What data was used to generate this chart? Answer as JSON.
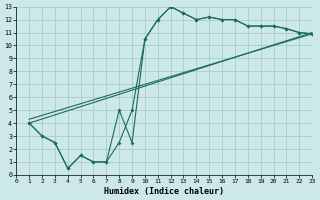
{
  "background_color": "#cce8e8",
  "grid_color": "#aacccc",
  "line_color": "#1a6b60",
  "xlabel": "Humidex (Indice chaleur)",
  "xlim": [
    0,
    23
  ],
  "ylim": [
    0,
    13
  ],
  "xticks": [
    0,
    1,
    2,
    3,
    4,
    5,
    6,
    7,
    8,
    9,
    10,
    11,
    12,
    13,
    14,
    15,
    16,
    17,
    18,
    19,
    20,
    21,
    22,
    23
  ],
  "yticks": [
    0,
    1,
    2,
    3,
    4,
    5,
    6,
    7,
    8,
    9,
    10,
    11,
    12,
    13
  ],
  "series1_x": [
    1,
    2,
    3,
    4,
    5,
    6,
    7,
    8,
    9,
    10,
    11,
    12,
    13,
    14,
    15,
    16,
    17,
    18,
    19,
    20,
    21,
    22,
    23
  ],
  "series1_y": [
    4.0,
    3.0,
    2.5,
    0.5,
    1.5,
    1.0,
    1.0,
    2.5,
    5.0,
    10.5,
    12.0,
    13.0,
    12.5,
    12.0,
    12.2,
    12.0,
    12.0,
    11.5,
    11.5,
    11.5,
    11.3,
    11.0,
    10.9
  ],
  "series2_x": [
    1,
    2,
    3,
    4,
    5,
    6,
    7,
    8,
    9,
    10,
    11,
    12,
    13,
    14,
    15,
    16,
    17,
    18,
    19,
    20,
    21,
    22,
    23
  ],
  "series2_y": [
    4.0,
    3.0,
    2.5,
    0.5,
    1.5,
    1.0,
    1.0,
    5.0,
    2.5,
    10.5,
    12.0,
    13.0,
    12.5,
    12.0,
    12.2,
    12.0,
    12.0,
    11.5,
    11.5,
    11.5,
    11.3,
    11.0,
    10.9
  ],
  "line3_x": [
    1,
    23
  ],
  "line3_y": [
    4.0,
    11.0
  ],
  "line4_x": [
    1,
    23
  ],
  "line4_y": [
    4.3,
    10.9
  ]
}
